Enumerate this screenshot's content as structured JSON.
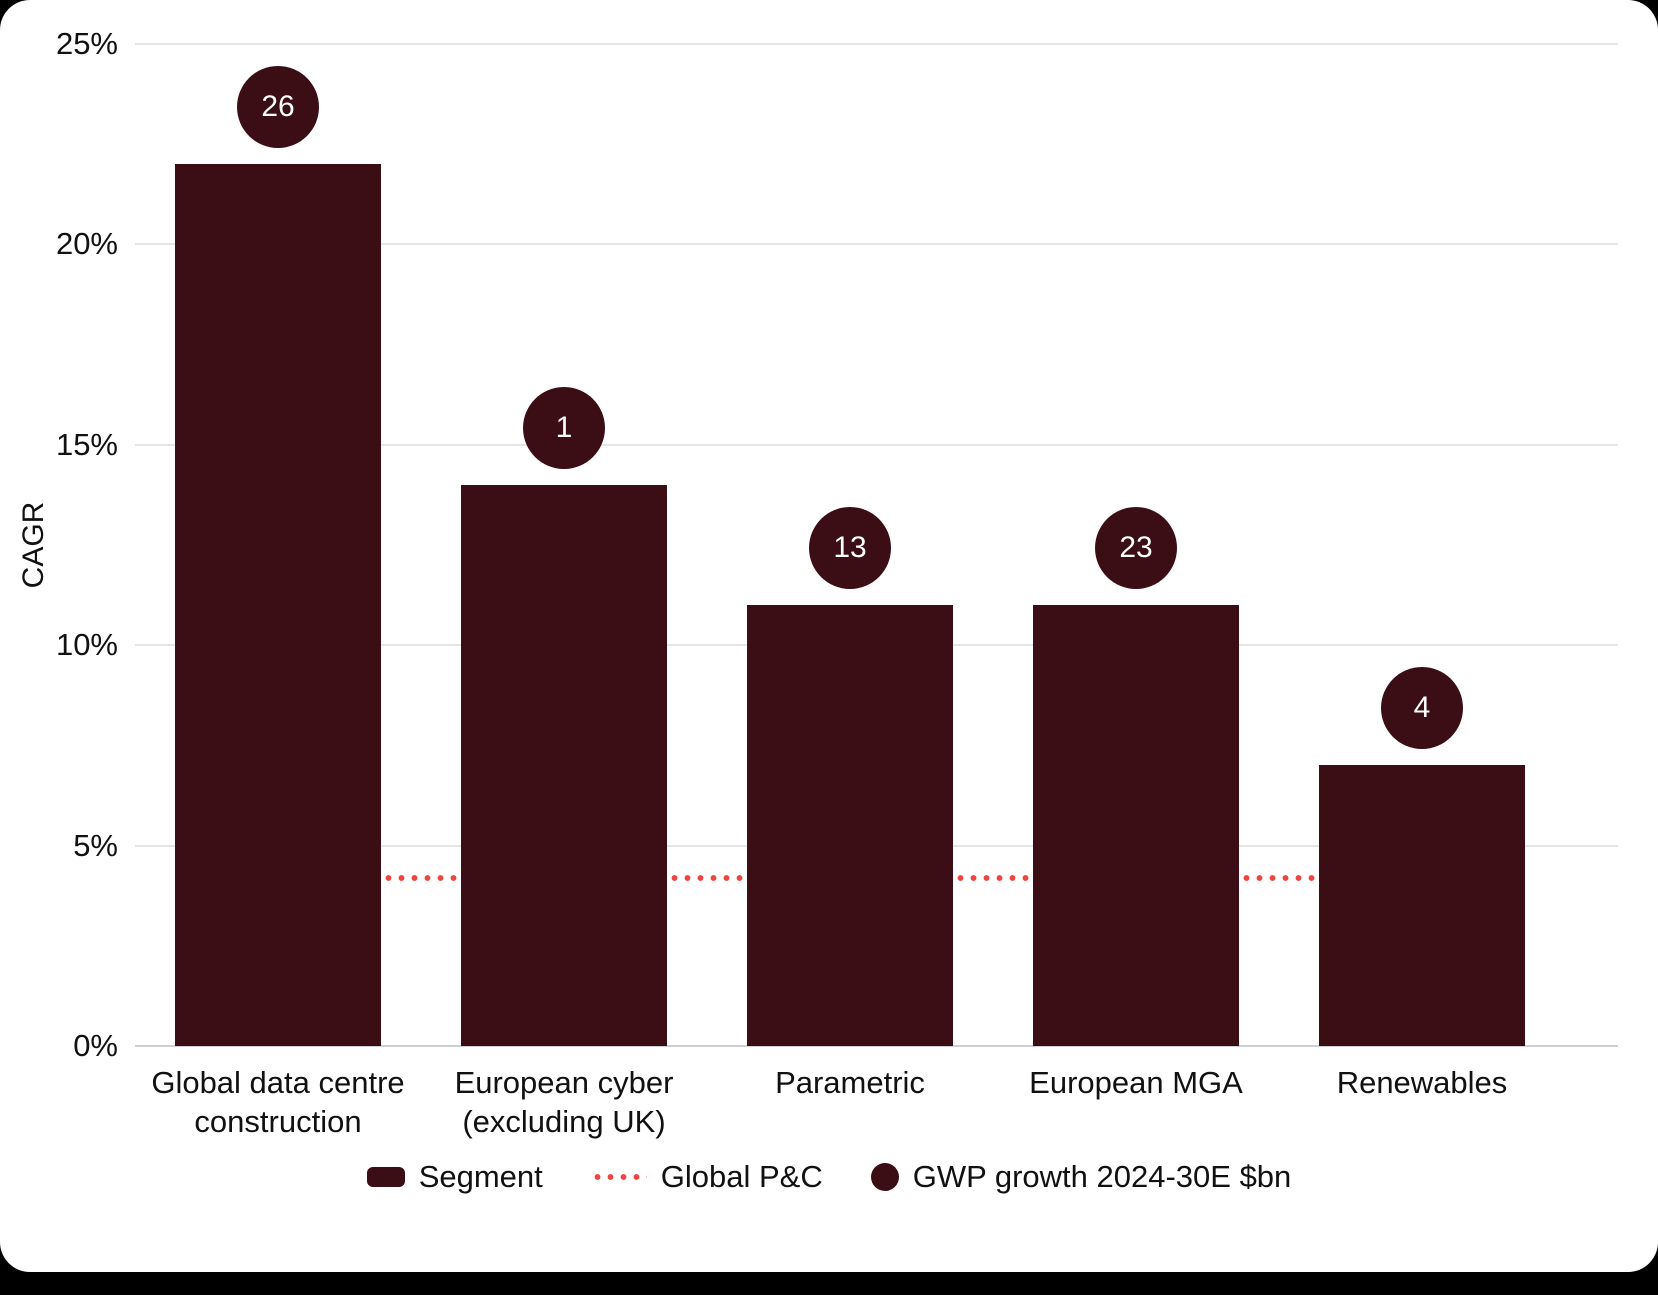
{
  "chart_data": {
    "type": "bar",
    "ylabel": "CAGR",
    "categories": [
      "Global data centre construction",
      "European cyber (excluding UK)",
      "Parametric",
      "European MGA",
      "Renewables"
    ],
    "series": [
      {
        "name": "Segment",
        "unit": "%",
        "values": [
          22,
          14,
          11,
          11,
          7
        ]
      },
      {
        "name": "GWP growth 2024-30E $bn",
        "values": [
          26,
          1,
          13,
          23,
          4
        ]
      }
    ],
    "reference_line": {
      "name": "Global P&C",
      "value": 4.2,
      "style": "dotted"
    },
    "ylim": [
      0,
      25
    ],
    "yticks": [
      "0%",
      "5%",
      "10%",
      "15%",
      "20%",
      "25%"
    ],
    "grid": "horizontal",
    "legend_position": "bottom"
  },
  "colors": {
    "bar": "#3a0e14",
    "bubble": "#3a0e14",
    "bubble_text": "#ffffff",
    "reference_line": "#ee4540",
    "gridline": "#e4e5e7",
    "axis_text": "#111111",
    "background": "#ffffff",
    "frame": "#000000"
  }
}
